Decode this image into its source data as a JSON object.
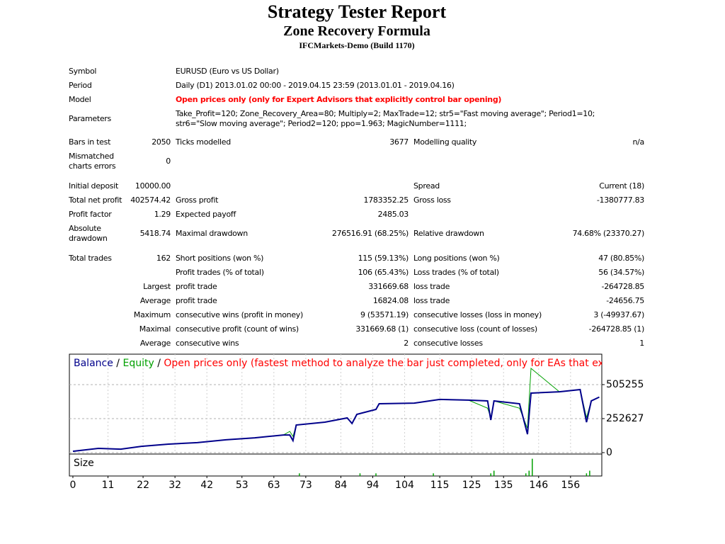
{
  "header": {
    "title": "Strategy Tester Report",
    "subtitle": "Zone Recovery Formula",
    "server": "IFCMarkets-Demo (Build 1170)"
  },
  "table": {
    "rows": [
      {
        "col1": "Symbol",
        "col3": "EURUSD (Euro vs US Dollar)"
      },
      {
        "col1": "Period",
        "col3": "Daily (D1) 2013.01.02 00:00 - 2019.04.15 23:59 (2013.01.01 - 2019.04.16)"
      },
      {
        "col1": "Model",
        "col3": "Open prices only (only for Expert Advisors that explicitly control bar opening)",
        "emphasis": true
      },
      {
        "col1": "Parameters",
        "col3": "Take_Profit=120; Zone_Recovery_Area=80; Multiply=2; MaxTrade=12; str5=\"Fast moving average\"; Period1=10; str6=\"Slow moving average\"; Period2=120; ppo=1.963; MagicNumber=1111;"
      },
      {
        "col1": "Bars in test",
        "col2": "2050",
        "col3": "Ticks modelled",
        "col4": "3677",
        "col5": "Modelling quality",
        "col6": "n/a"
      },
      {
        "col1": "Mismatched charts errors",
        "col2": "0"
      },
      {
        "col1": "Initial deposit",
        "col2": "10000.00",
        "col5": "Spread",
        "col6": "Current (18)"
      },
      {
        "col1": "Total net profit",
        "col2": "402574.42",
        "col3": "Gross profit",
        "col4": "1783352.25",
        "col5": "Gross loss",
        "col6": "-1380777.83"
      },
      {
        "col1": "Profit factor",
        "col2": "1.29",
        "col3": "Expected payoff",
        "col4": "2485.03"
      },
      {
        "col1": "Absolute drawdown",
        "col2": "5418.74",
        "col3": "Maximal drawdown",
        "col4": "276516.91 (68.25%)",
        "col5": "Relative drawdown",
        "col6": "74.68% (23370.27)"
      },
      {
        "col1": "Total trades",
        "col2": "162",
        "col3": "Short positions (won %)",
        "col4": "115 (59.13%)",
        "col5": "Long positions (won %)",
        "col6": "47 (80.85%)"
      },
      {
        "col3": "Profit trades (% of total)",
        "col4": "106 (65.43%)",
        "col5": "Loss trades (% of total)",
        "col6": "56 (34.57%)"
      },
      {
        "col2": "Largest",
        "col3": "profit trade",
        "col4": "331669.68",
        "col5": "loss trade",
        "col6": "-264728.85"
      },
      {
        "col2": "Average",
        "col3": "profit trade",
        "col4": "16824.08",
        "col5": "loss trade",
        "col6": "-24656.75"
      },
      {
        "col2": "Maximum",
        "col3": "consecutive wins (profit in money)",
        "col4": "9 (53571.19)",
        "col5": "consecutive losses (loss in money)",
        "col6": "3 (-49937.67)"
      },
      {
        "col2": "Maximal",
        "col3": "consecutive profit (count of wins)",
        "col4": "331669.68 (1)",
        "col5": "consecutive loss (count of losses)",
        "col6": "-264728.85 (1)"
      },
      {
        "col2": "Average",
        "col3": "consecutive wins",
        "col4": "2",
        "col5": "consecutive losses",
        "col6": "1"
      }
    ]
  },
  "chart_data": {
    "type": "line",
    "legend": {
      "separator": "/",
      "note": "Open prices only (fastest method to analyze the bar just completed, only for EAs that explicitly control b",
      "note_color": "#ff0000"
    },
    "x": [
      0,
      8,
      15,
      21.5,
      30,
      39,
      48,
      57,
      66,
      68,
      69,
      70,
      79,
      86,
      87.5,
      89,
      95,
      96,
      107,
      115,
      124,
      130,
      131,
      132,
      140,
      142.5,
      143.6,
      152.5,
      159,
      161,
      162.5,
      165
    ],
    "series": [
      {
        "name": "Balance",
        "color": "#00008b",
        "values": [
          10000,
          31600,
          26000,
          47000,
          63000,
          74000,
          95000,
          110000,
          131000,
          131000,
          89000,
          205000,
          226000,
          258000,
          216000,
          284000,
          321000,
          363000,
          368000,
          395000,
          390000,
          384000,
          242000,
          384000,
          363000,
          137000,
          442000,
          452000,
          468000,
          226000,
          384000,
          412574
        ]
      },
      {
        "name": "Equity",
        "color": "#00a000",
        "values": [
          10000,
          31600,
          26000,
          47000,
          63000,
          74000,
          95000,
          110000,
          131000,
          158000,
          120000,
          205000,
          226000,
          258000,
          216000,
          284000,
          321000,
          363000,
          368000,
          395000,
          390000,
          330000,
          260000,
          384000,
          330000,
          180000,
          626000,
          452000,
          468000,
          260000,
          384000,
          412574
        ]
      }
    ],
    "xlim": [
      -1.1,
      165.8
    ],
    "ylim": [
      0,
      731318
    ],
    "xticks": [
      0,
      11,
      22,
      32,
      42,
      53,
      63,
      73,
      84,
      94,
      104,
      115,
      125,
      135,
      146,
      156
    ],
    "yticks": [
      0,
      252627,
      505255
    ],
    "grid": true,
    "size_panel": {
      "title": "Size",
      "color": "#00a000",
      "x": [
        71,
        90,
        95,
        113,
        131,
        132,
        142,
        143,
        144,
        161,
        162
      ],
      "values": [
        1,
        1,
        1,
        1,
        1,
        2,
        1,
        2,
        6.5,
        1,
        2
      ],
      "ylim": [
        0,
        8
      ]
    }
  }
}
